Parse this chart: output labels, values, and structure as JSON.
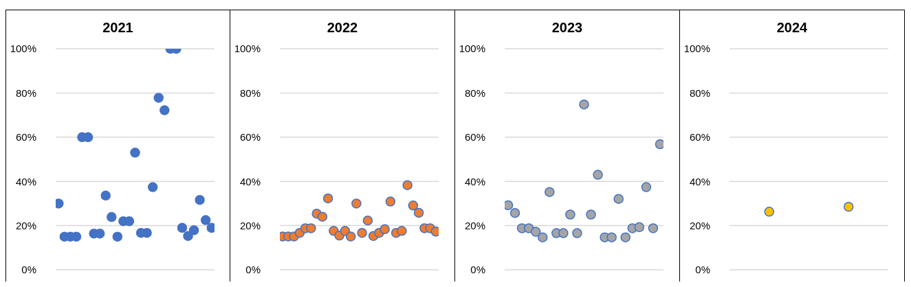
{
  "chart_data": [
    {
      "type": "scatter",
      "title": "2021",
      "categories": [
        null,
        null,
        null,
        null,
        null,
        null,
        null,
        null,
        null,
        null,
        null,
        null,
        null,
        null,
        null,
        null,
        null,
        null,
        null,
        null,
        null,
        null,
        null,
        null,
        null,
        null,
        null
      ],
      "series": [
        {
          "color": "#4472c4",
          "values": [
            30,
            15,
            15,
            15,
            60,
            60,
            16.4,
            16.4,
            33.6,
            23.9,
            15,
            22,
            22,
            53,
            16.7,
            16.7,
            37.4,
            77.8,
            72.2,
            100,
            100,
            19,
            15.3,
            17.9,
            31.6,
            22.5,
            19
          ]
        }
      ],
      "ylim": [
        0,
        100
      ],
      "yticks": [
        {
          "value": 0,
          "label": "0%"
        },
        {
          "value": 20,
          "label": "20%"
        },
        {
          "value": 40,
          "label": "40%"
        },
        {
          "value": 60,
          "label": "60%"
        },
        {
          "value": 80,
          "label": "80%"
        },
        {
          "value": 100,
          "label": "100%"
        }
      ],
      "grid": "y",
      "marker": "circle",
      "tick_labels": "y"
    },
    {
      "type": "scatter",
      "title": "2022",
      "categories": [
        null,
        null,
        null,
        null,
        null,
        null,
        null,
        null,
        null,
        null,
        null,
        null,
        null,
        null,
        null,
        null,
        null,
        null,
        null,
        null,
        null,
        null,
        null,
        null,
        null,
        null,
        null,
        null
      ],
      "series": [
        {
          "color": "#ed7d31",
          "values": [
            15.1,
            15.1,
            15.1,
            16.7,
            18.8,
            18.8,
            25.4,
            24,
            32.3,
            17.6,
            15.5,
            17.6,
            15.1,
            30,
            16.7,
            22.3,
            15.3,
            16.7,
            18.4,
            30.9,
            16.7,
            17.6,
            38.3,
            29.1,
            25.8,
            18.8,
            18.8,
            17.3
          ]
        }
      ],
      "ylim": [
        0,
        100
      ],
      "yticks": [
        {
          "value": 0,
          "label": "0%"
        },
        {
          "value": 20,
          "label": "20%"
        },
        {
          "value": 40,
          "label": "40%"
        },
        {
          "value": 60,
          "label": "60%"
        },
        {
          "value": 80,
          "label": "80%"
        },
        {
          "value": 100,
          "label": "100%"
        }
      ],
      "grid": "y",
      "marker": "circle",
      "tick_labels": "y"
    },
    {
      "type": "scatter",
      "title": "2023",
      "categories": [
        null,
        null,
        null,
        null,
        null,
        null,
        null,
        null,
        null,
        null,
        null,
        null,
        null,
        null,
        null,
        null,
        null,
        null,
        null,
        null,
        null,
        null,
        null
      ],
      "series": [
        {
          "color": "#a5a5a5",
          "values": [
            29.2,
            25.7,
            18.8,
            18.8,
            17.2,
            14.7,
            35.2,
            16.6,
            16.6,
            25,
            16.6,
            74.8,
            25,
            43,
            14.7,
            14.7,
            32.1,
            14.7,
            18.8,
            19.3,
            37.4,
            18.8,
            56.8
          ]
        }
      ],
      "ylim": [
        0,
        100
      ],
      "yticks": [
        {
          "value": 0,
          "label": "0%"
        },
        {
          "value": 20,
          "label": "20%"
        },
        {
          "value": 40,
          "label": "40%"
        },
        {
          "value": 60,
          "label": "60%"
        },
        {
          "value": 80,
          "label": "80%"
        },
        {
          "value": 100,
          "label": "100%"
        }
      ],
      "grid": "y",
      "marker": "circle",
      "tick_labels": "y"
    },
    {
      "type": "scatter",
      "title": "2024",
      "categories": [
        null,
        null
      ],
      "series": [
        {
          "color": "#ffc000",
          "values": [
            26.3,
            28.5
          ]
        }
      ],
      "ylim": [
        0,
        100
      ],
      "yticks": [
        {
          "value": 0,
          "label": "0%"
        },
        {
          "value": 20,
          "label": "20%"
        },
        {
          "value": 40,
          "label": "40%"
        },
        {
          "value": 60,
          "label": "60%"
        },
        {
          "value": 80,
          "label": "80%"
        },
        {
          "value": 100,
          "label": "100%"
        }
      ],
      "grid": "y",
      "marker": "circle",
      "tick_labels": "y"
    }
  ]
}
